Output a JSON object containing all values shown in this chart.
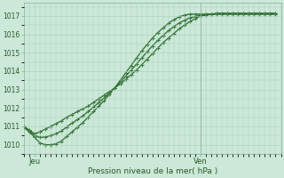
{
  "title": "",
  "xlabel": "Pression niveau de la mer( hPa )",
  "bg_color": "#cce8d8",
  "grid_color": "#a8cfc0",
  "line_color": "#2d6e2d",
  "xlim": [
    0,
    48
  ],
  "ylim": [
    1009.5,
    1017.7
  ],
  "yticks": [
    1010,
    1011,
    1012,
    1013,
    1014,
    1015,
    1016,
    1017
  ],
  "xtick_labels": [
    "Jeu",
    "Ven"
  ],
  "xtick_positions": [
    2,
    33
  ],
  "vline_x": 33,
  "series": {
    "s1": [
      1011.0,
      1010.8,
      1010.6,
      1010.7,
      1010.85,
      1011.0,
      1011.15,
      1011.3,
      1011.5,
      1011.65,
      1011.8,
      1011.95,
      1012.1,
      1012.3,
      1012.5,
      1012.7,
      1012.9,
      1013.1,
      1013.3,
      1013.55,
      1013.8,
      1014.05,
      1014.35,
      1014.65,
      1014.95,
      1015.25,
      1015.55,
      1015.8,
      1016.05,
      1016.3,
      1016.5,
      1016.7,
      1016.85,
      1017.0,
      1017.05,
      1017.1,
      1017.15,
      1017.15,
      1017.15,
      1017.15,
      1017.15,
      1017.15,
      1017.15,
      1017.15,
      1017.15,
      1017.15,
      1017.15,
      1017.15
    ],
    "s2": [
      1010.95,
      1010.7,
      1010.4,
      1010.1,
      1010.0,
      1010.0,
      1010.05,
      1010.2,
      1010.45,
      1010.7,
      1010.95,
      1011.2,
      1011.5,
      1011.8,
      1012.1,
      1012.4,
      1012.75,
      1013.1,
      1013.5,
      1013.9,
      1014.3,
      1014.7,
      1015.1,
      1015.45,
      1015.8,
      1016.1,
      1016.35,
      1016.6,
      1016.8,
      1016.95,
      1017.05,
      1017.1,
      1017.1,
      1017.1,
      1017.1,
      1017.1,
      1017.1,
      1017.1,
      1017.1,
      1017.1,
      1017.1,
      1017.1,
      1017.1,
      1017.1,
      1017.1,
      1017.1,
      1017.1,
      1017.1
    ],
    "s3": [
      1011.0,
      1010.75,
      1010.5,
      1010.4,
      1010.42,
      1010.5,
      1010.6,
      1010.75,
      1010.97,
      1011.17,
      1011.37,
      1011.57,
      1011.8,
      1012.05,
      1012.3,
      1012.55,
      1012.82,
      1013.1,
      1013.4,
      1013.72,
      1014.05,
      1014.37,
      1014.72,
      1015.05,
      1015.37,
      1015.67,
      1015.95,
      1016.2,
      1016.42,
      1016.62,
      1016.77,
      1016.9,
      1016.97,
      1017.05,
      1017.07,
      1017.1,
      1017.12,
      1017.12,
      1017.12,
      1017.12,
      1017.12,
      1017.12,
      1017.12,
      1017.12,
      1017.12,
      1017.12,
      1017.12,
      1017.12
    ]
  }
}
